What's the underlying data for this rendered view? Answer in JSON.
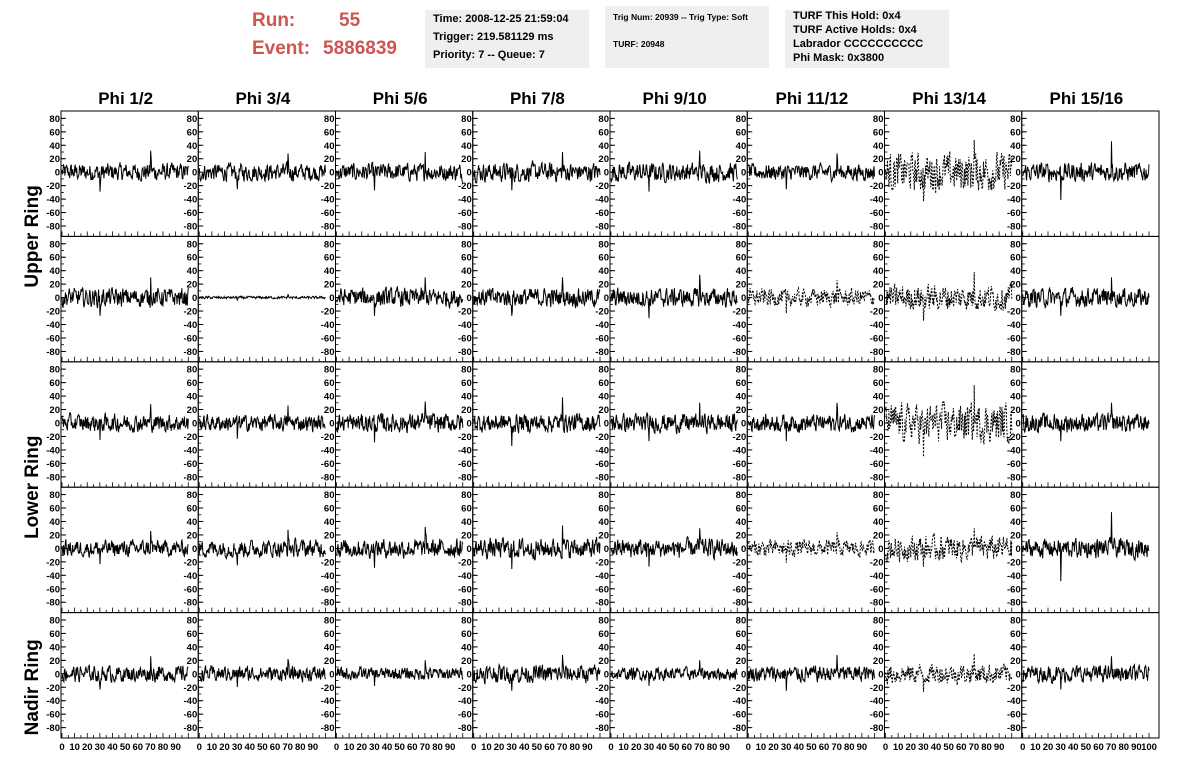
{
  "header": {
    "run_label": "Run:",
    "run_value": "55",
    "event_label": "Event:",
    "event_value": "5886839",
    "accent_color": "#d05550",
    "time_info": {
      "time": "Time: 2008-12-25 21:59:04",
      "trigger": "Trigger: 219.581129 ms",
      "priority": "Priority: 7 -- Queue: 7"
    },
    "trig_info": {
      "trig_num": "Trig Num: 20939 -- Trig Type: Soft",
      "turf": "TURF: 20948"
    },
    "turf_info": {
      "this_hold": "TURF This Hold: 0x4",
      "active_holds": "TURF Active Holds: 0x4",
      "labrador": "Labrador CCCCCCCCCC",
      "phi_mask": "Phi Mask: 0x3800"
    }
  },
  "chart_data": {
    "type": "line",
    "grid": false,
    "columns": [
      "Phi 1/2",
      "Phi 3/4",
      "Phi 5/6",
      "Phi 7/8",
      "Phi 9/10",
      "Phi 11/12",
      "Phi 13/14",
      "Phi 15/16"
    ],
    "ring_labels": [
      "Upper Ring",
      "Lower Ring",
      "Nadir Ring"
    ],
    "rows": 5,
    "ylim": [
      -85,
      85
    ],
    "yticks": [
      "80",
      "60",
      "40",
      "20",
      "0",
      "-20",
      "-40",
      "-60",
      "-80"
    ],
    "xlim": [
      0,
      100
    ],
    "xticks": [
      "0",
      "10",
      "20",
      "30",
      "40",
      "50",
      "60",
      "70",
      "80",
      "90",
      "100"
    ],
    "trace_color": "#000000",
    "waveforms": [
      [
        {
          "style": "solid",
          "amplitude": 14,
          "peak": 32
        },
        {
          "style": "solid",
          "amplitude": 14,
          "peak": 28
        },
        {
          "style": "solid",
          "amplitude": 14,
          "peak": 30
        },
        {
          "style": "solid",
          "amplitude": 15,
          "peak": 30
        },
        {
          "style": "solid",
          "amplitude": 15,
          "peak": 32
        },
        {
          "style": "solid",
          "amplitude": 13,
          "peak": 28
        },
        {
          "style": "dashed",
          "amplitude": 30,
          "peak": 48
        },
        {
          "style": "solid",
          "amplitude": 15,
          "peak": 46
        }
      ],
      [
        {
          "style": "solid",
          "amplitude": 15,
          "peak": 30
        },
        {
          "style": "solid",
          "amplitude": 2,
          "peak": 5
        },
        {
          "style": "solid",
          "amplitude": 15,
          "peak": 30
        },
        {
          "style": "solid",
          "amplitude": 15,
          "peak": 30
        },
        {
          "style": "solid",
          "amplitude": 15,
          "peak": 34
        },
        {
          "style": "dashed",
          "amplitude": 14,
          "peak": 26
        },
        {
          "style": "dashed",
          "amplitude": 20,
          "peak": 38
        },
        {
          "style": "solid",
          "amplitude": 15,
          "peak": 30
        }
      ],
      [
        {
          "style": "solid",
          "amplitude": 14,
          "peak": 28
        },
        {
          "style": "solid",
          "amplitude": 13,
          "peak": 26
        },
        {
          "style": "solid",
          "amplitude": 15,
          "peak": 32
        },
        {
          "style": "solid",
          "amplitude": 15,
          "peak": 38
        },
        {
          "style": "solid",
          "amplitude": 15,
          "peak": 30
        },
        {
          "style": "solid",
          "amplitude": 14,
          "peak": 30
        },
        {
          "style": "dashed",
          "amplitude": 30,
          "peak": 56
        },
        {
          "style": "solid",
          "amplitude": 15,
          "peak": 30
        }
      ],
      [
        {
          "style": "solid",
          "amplitude": 13,
          "peak": 26
        },
        {
          "style": "solid",
          "amplitude": 14,
          "peak": 28
        },
        {
          "style": "solid",
          "amplitude": 15,
          "peak": 32
        },
        {
          "style": "solid",
          "amplitude": 16,
          "peak": 34
        },
        {
          "style": "solid",
          "amplitude": 15,
          "peak": 30
        },
        {
          "style": "dashed",
          "amplitude": 13,
          "peak": 24
        },
        {
          "style": "dashed",
          "amplitude": 20,
          "peak": 30
        },
        {
          "style": "solid",
          "amplitude": 15,
          "peak": 54
        }
      ],
      [
        {
          "style": "solid",
          "amplitude": 13,
          "peak": 26
        },
        {
          "style": "solid",
          "amplitude": 12,
          "peak": 22
        },
        {
          "style": "solid",
          "amplitude": 10,
          "peak": 20
        },
        {
          "style": "solid",
          "amplitude": 14,
          "peak": 28
        },
        {
          "style": "solid",
          "amplitude": 10,
          "peak": 20
        },
        {
          "style": "solid",
          "amplitude": 13,
          "peak": 28
        },
        {
          "style": "dashed",
          "amplitude": 16,
          "peak": 30
        },
        {
          "style": "solid",
          "amplitude": 13,
          "peak": 26
        }
      ]
    ]
  }
}
